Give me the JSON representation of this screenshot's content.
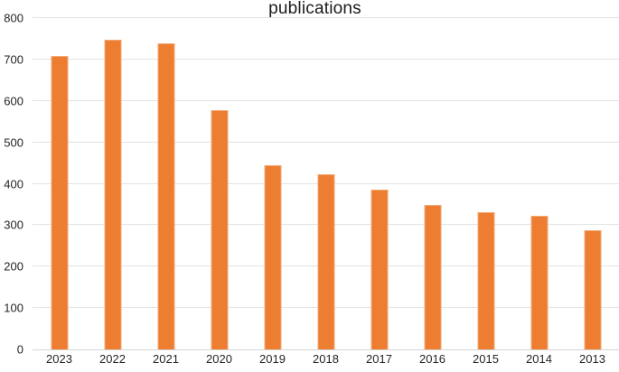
{
  "chart_data": {
    "type": "bar",
    "title": "publications",
    "categories": [
      "2023",
      "2022",
      "2021",
      "2020",
      "2019",
      "2018",
      "2017",
      "2016",
      "2015",
      "2014",
      "2013"
    ],
    "values": [
      708,
      748,
      739,
      578,
      444,
      424,
      386,
      348,
      331,
      322,
      287
    ],
    "xlabel": "",
    "ylabel": "",
    "ylim": [
      0,
      800
    ],
    "ytick_step": 100,
    "ytick_labels": [
      "0",
      "100",
      "200",
      "300",
      "400",
      "500",
      "600",
      "700",
      "800"
    ],
    "grid": true,
    "legend": "none",
    "colors": {
      "bar_fill": "#ED7D31",
      "bar_border": "#F3A976",
      "gridline": "#E3E3E3",
      "axis_line": "#D6D6D6",
      "tick_label": "#262626",
      "title": "#1A1A1A",
      "background": "#FFFFFF"
    }
  }
}
